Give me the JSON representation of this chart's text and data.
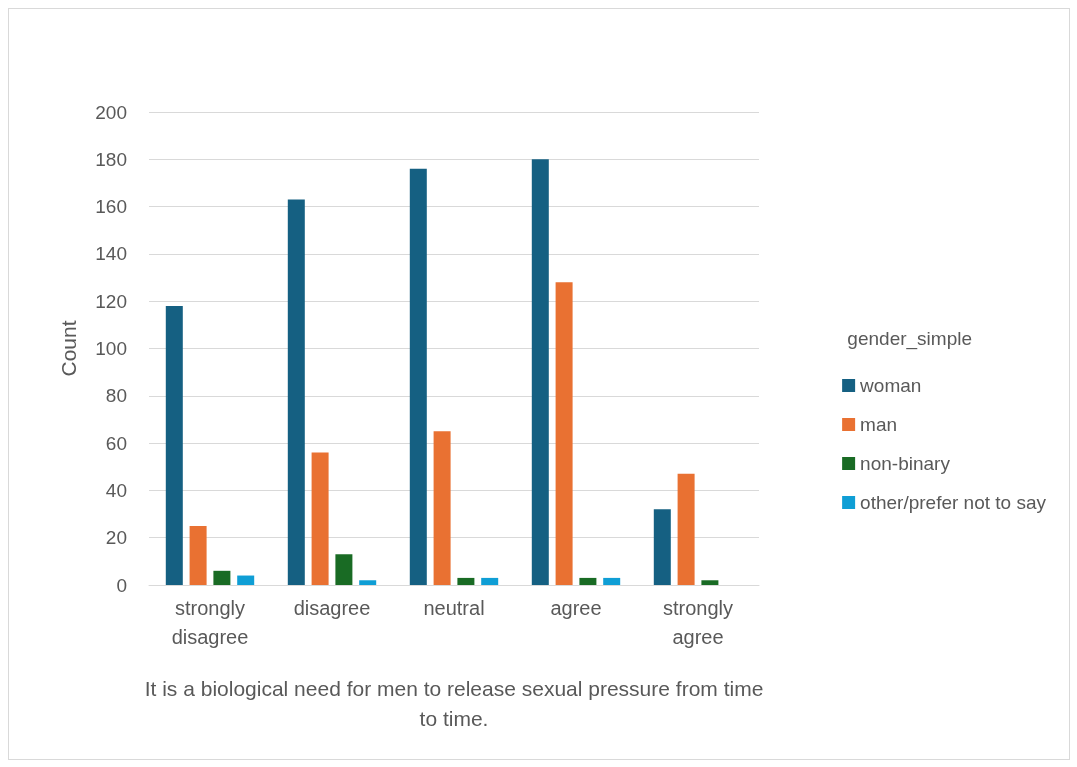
{
  "chart_data": {
    "type": "bar",
    "xlabel": "It is a biological need for men to release sexual pressure from time to time.",
    "ylabel": "Count",
    "legend_title": "gender_simple",
    "categories": [
      "strongly disagree",
      "disagree",
      "neutral",
      "agree",
      "strongly agree"
    ],
    "series": [
      {
        "name": "woman",
        "color": "#156082",
        "values": [
          118,
          163,
          176,
          180,
          32
        ]
      },
      {
        "name": "man",
        "color": "#e97132",
        "values": [
          25,
          56,
          65,
          128,
          47
        ]
      },
      {
        "name": "non-binary",
        "color": "#196b24",
        "values": [
          6,
          13,
          3,
          3,
          2
        ]
      },
      {
        "name": "other/prefer not to say",
        "color": "#0f9ed5",
        "values": [
          4,
          2,
          3,
          3,
          0
        ]
      }
    ],
    "ylim": [
      0,
      200
    ],
    "yticks": [
      0,
      20,
      40,
      60,
      80,
      100,
      120,
      140,
      160,
      180,
      200
    ],
    "grid": "y",
    "legend": "right"
  }
}
